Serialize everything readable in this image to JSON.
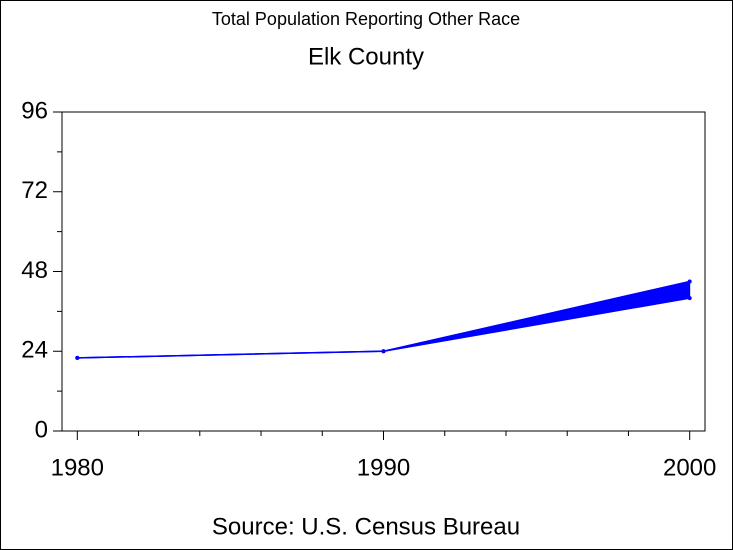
{
  "chart_data": {
    "type": "line",
    "title": "Total Population Reporting Other Race",
    "subtitle": "Elk County",
    "source": "Source: U.S. Census Bureau",
    "x": [
      1980,
      1990,
      2000
    ],
    "series": [
      {
        "color": "#0000ff",
        "values": [
          22,
          24,
          45
        ]
      },
      {
        "color": "#0000ff",
        "values": [
          22,
          24,
          40
        ]
      }
    ],
    "fill_between": true,
    "xlim": [
      1979.5,
      2000.5
    ],
    "xticks": [
      1980,
      1990,
      2000
    ],
    "xminor": [
      1982,
      1984,
      1986,
      1988,
      1992,
      1994,
      1996,
      1998
    ],
    "ylim": [
      0,
      96
    ],
    "yticks": [
      0,
      24,
      48,
      72,
      96
    ],
    "yminor": [
      12,
      36,
      60,
      84
    ]
  }
}
